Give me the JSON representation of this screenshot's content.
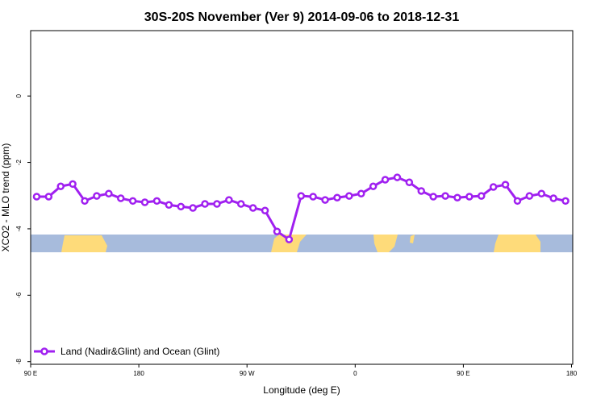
{
  "chart_data": {
    "type": "line",
    "title": "30S-20S November (Ver 9)   2014-09-06 to 2018-12-31",
    "x_label": "Longitude (deg E)",
    "y_label": "XCO2 - MLO trend (ppm)",
    "x": [
      95,
      105,
      115,
      125,
      135,
      145,
      155,
      165,
      175,
      185,
      195,
      205,
      215,
      225,
      235,
      245,
      255,
      265,
      275,
      285,
      295,
      305,
      315,
      325,
      335,
      345,
      355,
      365,
      375,
      385,
      395,
      405,
      415,
      425,
      435,
      445,
      455,
      465,
      475,
      485,
      495,
      505,
      515,
      525,
      535
    ],
    "series": [
      {
        "name": "Land (Nadir&Glint) and Ocean (Glint)",
        "color": "#a020f0",
        "values": [
          -3.03,
          -3.03,
          -2.72,
          -2.65,
          -3.16,
          -3.01,
          -2.94,
          -3.08,
          -3.16,
          -3.2,
          -3.16,
          -3.28,
          -3.33,
          -3.37,
          -3.25,
          -3.25,
          -3.13,
          -3.25,
          -3.37,
          -3.45,
          -4.08,
          -4.32,
          -3.01,
          -3.03,
          -3.13,
          -3.06,
          -3.01,
          -2.94,
          -2.72,
          -2.52,
          -2.45,
          -2.6,
          -2.86,
          -3.03,
          -3.01,
          -3.06,
          -3.03,
          -3.01,
          -2.74,
          -2.67,
          -3.16,
          -3.01,
          -2.94,
          -3.08,
          -3.16
        ]
      }
    ],
    "xlim": [
      90,
      541
    ],
    "ylim": [
      -8.08,
      1.97
    ],
    "xticks": [
      {
        "value": 90,
        "label": "90 E"
      },
      180,
      {
        "value": 270,
        "label": "90 W"
      },
      {
        "value": 360,
        "label": "0"
      },
      {
        "value": 450,
        "label": "90 E"
      },
      {
        "value": 540,
        "label": "180"
      }
    ],
    "yticks": [
      0,
      -2,
      -4,
      -6,
      -8
    ],
    "legend": "bottom-left"
  }
}
